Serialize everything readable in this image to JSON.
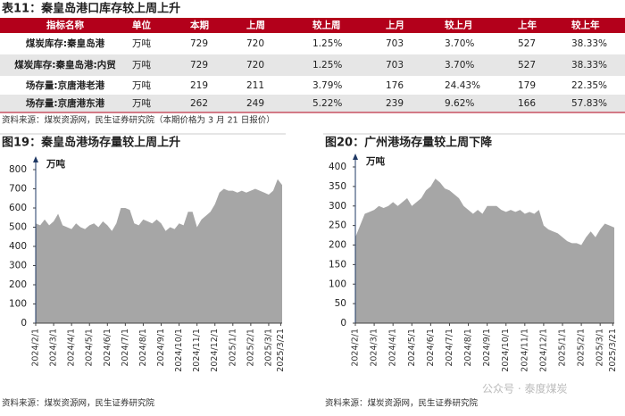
{
  "table": {
    "title": "表11：秦皇岛港口库存较上周上升",
    "headers": [
      "指标名称",
      "单位",
      "本期",
      "上周",
      "较上周",
      "上月",
      "较上月",
      "上年",
      "较上年"
    ],
    "rows": [
      [
        "煤炭库存:秦皇岛港",
        "万吨",
        "729",
        "720",
        "1.25%",
        "703",
        "3.70%",
        "527",
        "38.33%"
      ],
      [
        "煤炭库存:秦皇岛港:内贸",
        "万吨",
        "729",
        "720",
        "1.25%",
        "703",
        "3.70%",
        "527",
        "38.33%"
      ],
      [
        "场存量:京唐港老港",
        "万吨",
        "219",
        "211",
        "3.79%",
        "176",
        "24.43%",
        "179",
        "22.35%"
      ],
      [
        "场存量:京唐港东港",
        "万吨",
        "262",
        "249",
        "5.22%",
        "239",
        "9.62%",
        "166",
        "57.83%"
      ]
    ],
    "source": "资料来源：煤炭资源网，民生证券研究院（本期价格为 3 月 21 日报价）"
  },
  "chart_data": [
    {
      "type": "area",
      "title": "图19：秦皇岛港场存量较上周上升",
      "unit": "万吨",
      "color": "#a6a6a6",
      "source": "资料来源：煤炭资源网，民生证券研究院",
      "xlim": [
        0,
        13.75
      ],
      "xticks": [
        {
          "value": 0,
          "label": "2024/2/1"
        },
        {
          "value": 1,
          "label": "2024/3/1"
        },
        {
          "value": 2,
          "label": "2024/4/1"
        },
        {
          "value": 3,
          "label": "2024/5/1"
        },
        {
          "value": 4,
          "label": "2024/6/1"
        },
        {
          "value": 5,
          "label": "2024/7/1"
        },
        {
          "value": 6,
          "label": "2024/8/1"
        },
        {
          "value": 7,
          "label": "2024/9/1"
        },
        {
          "value": 8,
          "label": "2024/10/1"
        },
        {
          "value": 9,
          "label": "2024/11/1"
        },
        {
          "value": 10,
          "label": "2024/12/1"
        },
        {
          "value": 11,
          "label": "2025/1/1"
        },
        {
          "value": 12,
          "label": "2025/2/1"
        },
        {
          "value": 13,
          "label": "2025/3/1"
        },
        {
          "value": 13.67,
          "label": "2025/3/21"
        }
      ],
      "ylim": [
        0,
        800
      ],
      "yticks": [
        0,
        100,
        200,
        300,
        400,
        500,
        600,
        700,
        800
      ],
      "x": [
        0,
        0.25,
        0.5,
        0.75,
        1,
        1.25,
        1.5,
        1.75,
        2,
        2.25,
        2.5,
        2.75,
        3,
        3.25,
        3.5,
        3.75,
        4,
        4.25,
        4.5,
        4.75,
        5,
        5.25,
        5.5,
        5.75,
        6,
        6.25,
        6.5,
        6.75,
        7,
        7.25,
        7.5,
        7.75,
        8,
        8.25,
        8.5,
        8.75,
        9,
        9.25,
        9.5,
        9.75,
        10,
        10.25,
        10.5,
        10.75,
        11,
        11.25,
        11.5,
        11.75,
        12,
        12.25,
        12.5,
        12.75,
        13,
        13.25,
        13.5,
        13.75
      ],
      "values": [
        520,
        510,
        540,
        510,
        530,
        570,
        510,
        500,
        490,
        520,
        500,
        490,
        510,
        520,
        500,
        530,
        510,
        480,
        520,
        600,
        600,
        590,
        520,
        510,
        540,
        530,
        520,
        540,
        520,
        480,
        500,
        490,
        520,
        510,
        580,
        580,
        500,
        540,
        560,
        580,
        620,
        680,
        700,
        690,
        690,
        680,
        690,
        680,
        690,
        700,
        690,
        680,
        670,
        690,
        750,
        720
      ]
    },
    {
      "type": "area",
      "title": "图20：广州港场存量较上周下降",
      "unit": "万吨",
      "color": "#a6a6a6",
      "source": "资料来源：煤炭资源网，民生证券研究院",
      "xlim": [
        0,
        13.75
      ],
      "xticks": [
        {
          "value": 0,
          "label": "2024/2/1"
        },
        {
          "value": 1,
          "label": "2024/3/1"
        },
        {
          "value": 2,
          "label": "2024/4/1"
        },
        {
          "value": 3,
          "label": "2024/5/1"
        },
        {
          "value": 4,
          "label": "2024/6/1"
        },
        {
          "value": 5,
          "label": "2024/7/1"
        },
        {
          "value": 6,
          "label": "2024/8/1"
        },
        {
          "value": 7,
          "label": "2024/9/1"
        },
        {
          "value": 8,
          "label": "2024/10/1"
        },
        {
          "value": 9,
          "label": "2024/11/1"
        },
        {
          "value": 10,
          "label": "2024/12/1"
        },
        {
          "value": 11,
          "label": "2025/1/1"
        },
        {
          "value": 12,
          "label": "2025/2/1"
        },
        {
          "value": 13,
          "label": "2025/3/1"
        },
        {
          "value": 13.67,
          "label": "2025/3/21"
        }
      ],
      "ylim": [
        0,
        400
      ],
      "yticks": [
        0,
        50,
        100,
        150,
        200,
        250,
        300,
        350,
        400
      ],
      "x": [
        0,
        0.25,
        0.5,
        0.75,
        1,
        1.25,
        1.5,
        1.75,
        2,
        2.25,
        2.5,
        2.75,
        3,
        3.25,
        3.5,
        3.75,
        4,
        4.25,
        4.5,
        4.75,
        5,
        5.25,
        5.5,
        5.75,
        6,
        6.25,
        6.5,
        6.75,
        7,
        7.25,
        7.5,
        7.75,
        8,
        8.25,
        8.5,
        8.75,
        9,
        9.25,
        9.5,
        9.75,
        10,
        10.25,
        10.5,
        10.75,
        11,
        11.25,
        11.5,
        11.75,
        12,
        12.25,
        12.5,
        12.75,
        13,
        13.25,
        13.5,
        13.75
      ],
      "values": [
        220,
        250,
        280,
        285,
        290,
        300,
        295,
        300,
        310,
        300,
        310,
        320,
        300,
        310,
        320,
        340,
        350,
        370,
        360,
        345,
        340,
        330,
        320,
        300,
        290,
        280,
        290,
        280,
        300,
        300,
        300,
        290,
        285,
        290,
        285,
        290,
        280,
        285,
        280,
        290,
        250,
        240,
        235,
        230,
        220,
        210,
        205,
        205,
        200,
        220,
        235,
        220,
        240,
        255,
        250,
        245
      ]
    }
  ],
  "watermark": "公众号 · 泰度煤炭"
}
